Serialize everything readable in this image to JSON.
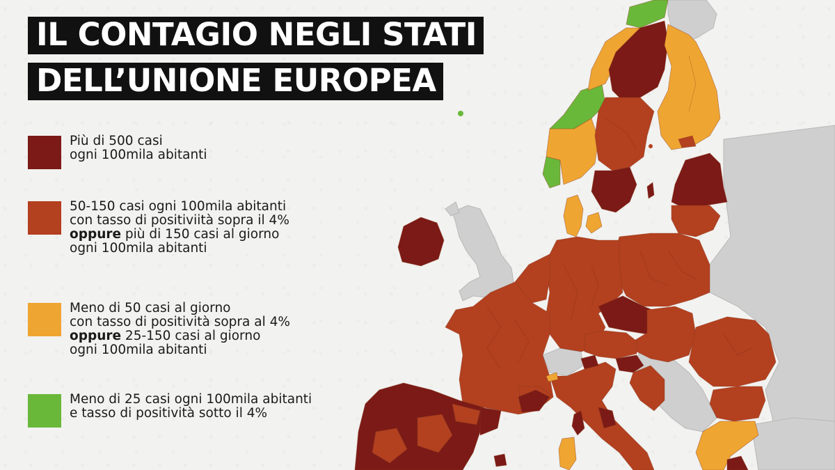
{
  "title": {
    "line1": "IL CONTAGIO NEGLI STATI",
    "line2": "DELL’UNIONE EUROPEA"
  },
  "colors": {
    "dark_red": "#7b1a16",
    "red": "#b3401f",
    "orange": "#efa532",
    "green": "#6ab83a",
    "grey_land": "#cfcfcf",
    "background": "#f2f2f0"
  },
  "legend": [
    {
      "color_key": "dark_red",
      "lines": [
        {
          "text": "Più di 500 casi"
        },
        {
          "text": "ogni 100mila abitanti"
        }
      ]
    },
    {
      "color_key": "red",
      "lines": [
        {
          "text": "50-150 casi ogni 100mila abitanti"
        },
        {
          "text": "con tasso di positiviità sopra il 4%"
        },
        {
          "bold": "oppure",
          "text": " più di 150 casi al giorno"
        },
        {
          "text": "ogni 100mila abitanti"
        }
      ]
    },
    {
      "color_key": "orange",
      "lines": [
        {
          "text": "Meno di 50 casi al giorno"
        },
        {
          "text": "con tasso di positività sopra al 4%"
        },
        {
          "bold": "oppure",
          "text": " 25-150 casi al giorno"
        },
        {
          "text": "ogni 100mila abitanti"
        }
      ]
    },
    {
      "color_key": "green",
      "lines": [
        {
          "text": "Meno di 25 casi ogni 100mila abitanti"
        },
        {
          "text": "e tasso di positività sotto il 4%"
        }
      ]
    }
  ],
  "regions": [
    {
      "name": "ireland",
      "level": "dark_red"
    },
    {
      "name": "united-kingdom",
      "level": "non-eu"
    },
    {
      "name": "iceland-norway-non-eu",
      "level": "non-eu"
    },
    {
      "name": "norway-north",
      "level": "orange"
    },
    {
      "name": "norway-coast",
      "level": "green"
    },
    {
      "name": "norway-south",
      "level": "orange"
    },
    {
      "name": "sweden-north",
      "level": "dark_red"
    },
    {
      "name": "sweden-central",
      "level": "red"
    },
    {
      "name": "sweden-south",
      "level": "dark_red"
    },
    {
      "name": "finland",
      "level": "orange"
    },
    {
      "name": "denmark",
      "level": "orange"
    },
    {
      "name": "estonia-latvia",
      "level": "dark_red"
    },
    {
      "name": "lithuania",
      "level": "red"
    },
    {
      "name": "poland",
      "level": "red"
    },
    {
      "name": "germany",
      "level": "red"
    },
    {
      "name": "netherlands-belgium",
      "level": "red"
    },
    {
      "name": "france",
      "level": "red"
    },
    {
      "name": "czechia",
      "level": "dark_red"
    },
    {
      "name": "slovakia-hungary",
      "level": "red"
    },
    {
      "name": "austria",
      "level": "red"
    },
    {
      "name": "switzerland",
      "level": "non-eu"
    },
    {
      "name": "slovenia-croatia",
      "level": "dark_red"
    },
    {
      "name": "italy",
      "level": "red"
    },
    {
      "name": "romania",
      "level": "red"
    },
    {
      "name": "bulgaria",
      "level": "red"
    },
    {
      "name": "balkans",
      "level": "non-eu"
    },
    {
      "name": "greece",
      "level": "orange"
    },
    {
      "name": "spain-portugal",
      "level": "dark_red"
    },
    {
      "name": "catalonia",
      "level": "dark_red"
    },
    {
      "name": "sardinia",
      "level": "orange"
    },
    {
      "name": "corsica",
      "level": "dark_red"
    }
  ]
}
